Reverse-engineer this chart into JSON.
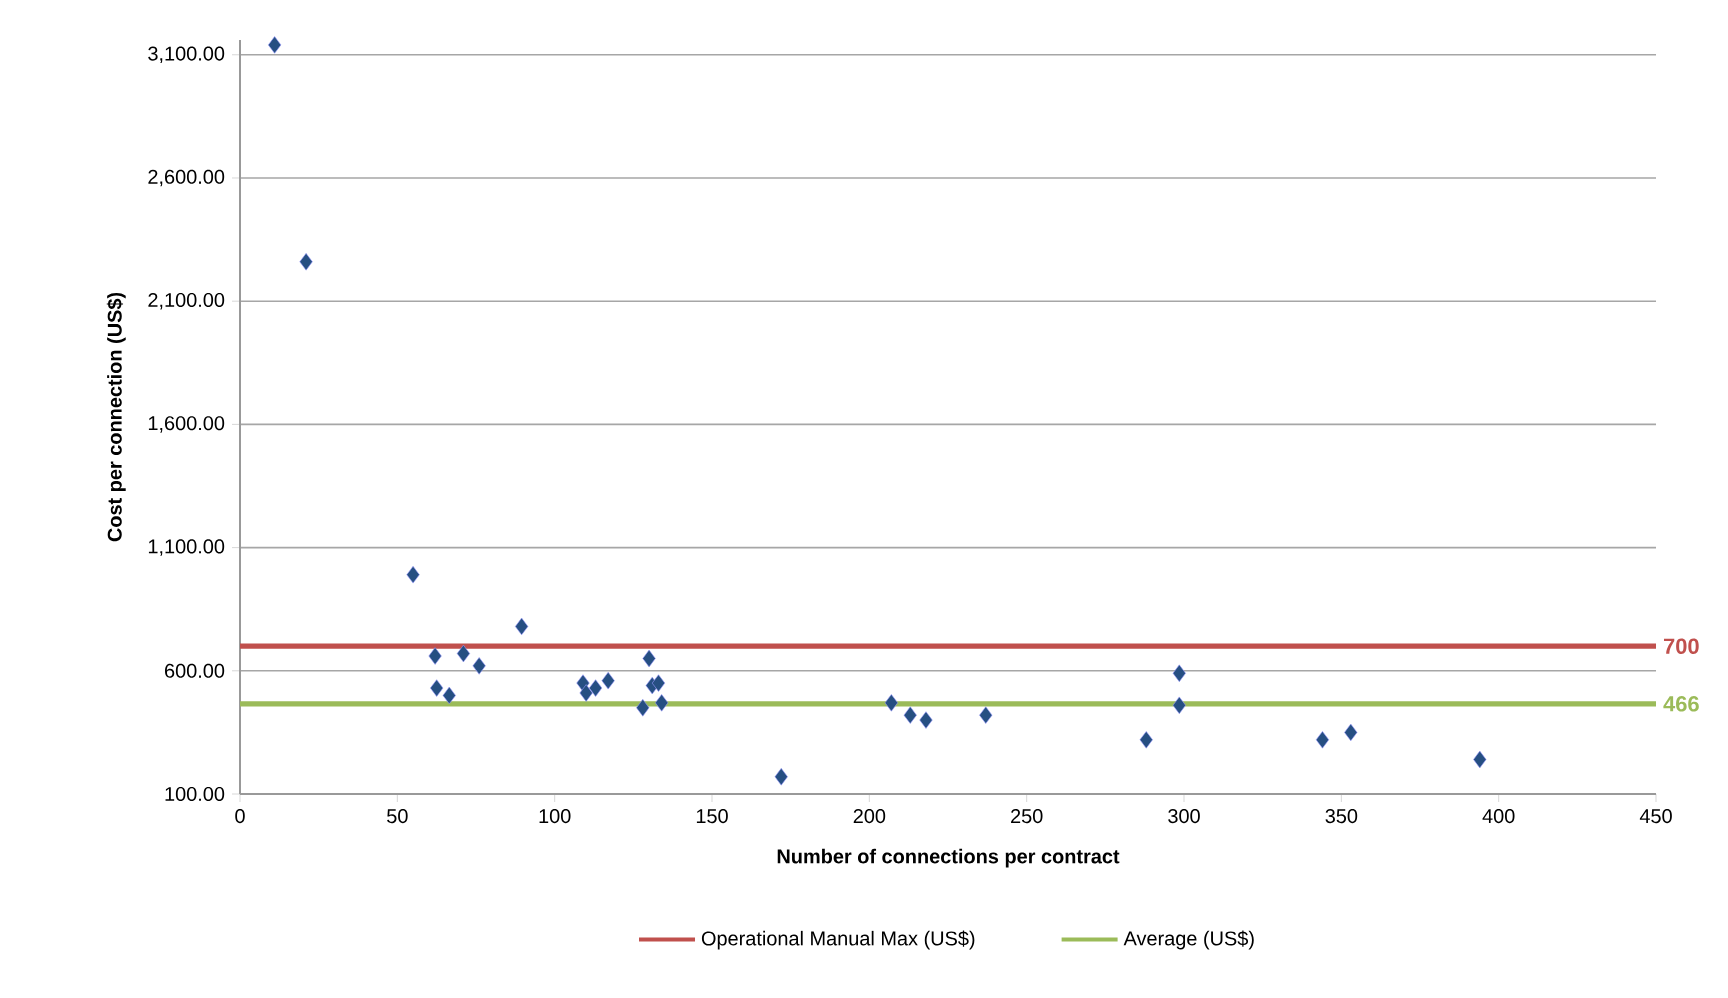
{
  "chart_data": {
    "type": "scatter",
    "xlabel": "Number of connections  per contract",
    "ylabel": "Cost per connection (US$)",
    "xlim": [
      0,
      450
    ],
    "ylim": [
      100,
      3160
    ],
    "xticks": [
      0,
      50,
      100,
      150,
      200,
      250,
      300,
      350,
      400,
      450
    ],
    "yticks": [
      {
        "value": 100,
        "label": "100.00"
      },
      {
        "value": 600,
        "label": "600.00"
      },
      {
        "value": 1100,
        "label": "1,100.00"
      },
      {
        "value": 1600,
        "label": "1,600.00"
      },
      {
        "value": 2100,
        "label": "2,100.00"
      },
      {
        "value": 2600,
        "label": "2,600.00"
      },
      {
        "value": 3100,
        "label": "3,100.00"
      }
    ],
    "grid": "y",
    "legend": "bottom",
    "marker": "diamond",
    "series": [
      {
        "color": "#264f82",
        "x": [
          11,
          21,
          55,
          62,
          62.5,
          66.5,
          71,
          76,
          89.5,
          109,
          110,
          113,
          117,
          128,
          130,
          131,
          133,
          134,
          172,
          207,
          213,
          218,
          237,
          288,
          298.5,
          298.5,
          344,
          353,
          394
        ],
        "values": [
          3140,
          2260,
          990,
          660,
          530,
          500,
          670,
          620,
          780,
          550,
          510,
          530,
          560,
          450,
          650,
          540,
          550,
          470,
          170,
          470,
          420,
          400,
          420,
          320,
          590,
          460,
          320,
          350,
          240
        ]
      },
      {
        "type": "line",
        "name": "Operational Manual Max (US$)",
        "color": "#c0504d",
        "marker": "none",
        "x": [
          0,
          450
        ],
        "values": [
          700,
          700
        ],
        "value_labels": [
          null,
          "700"
        ]
      },
      {
        "type": "line",
        "name": "Average (US$)",
        "color": "#9bbb59",
        "marker": "none",
        "x": [
          0,
          450
        ],
        "values": [
          466,
          466
        ],
        "value_labels": [
          null,
          "466"
        ]
      }
    ]
  }
}
